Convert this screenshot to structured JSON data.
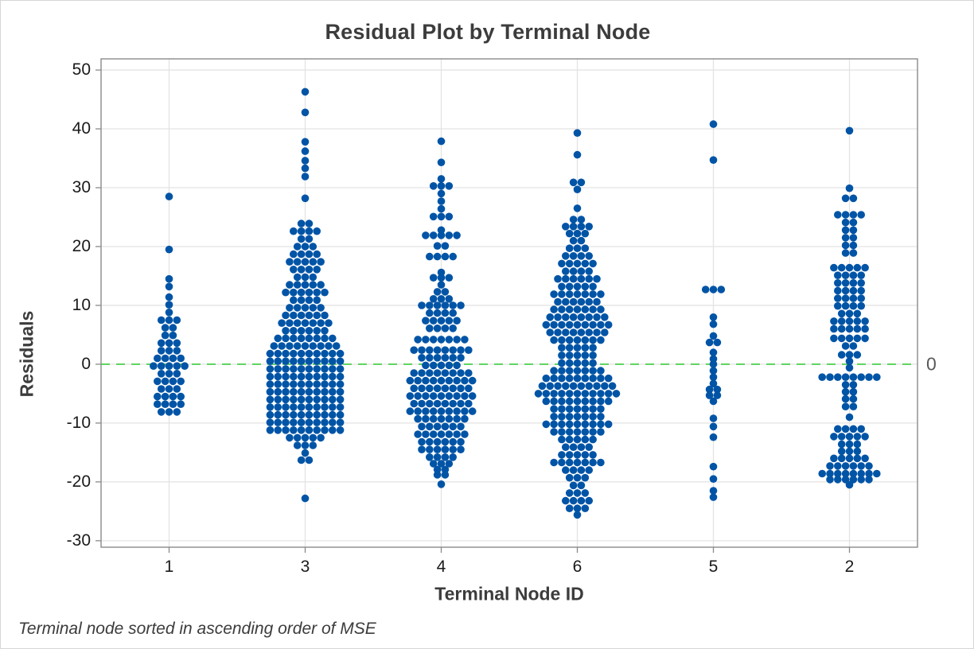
{
  "footnote": "Terminal node sorted in ascending order of MSE",
  "colors": {
    "dot": "#0054a6",
    "reference_line": "#3ecc3e",
    "frame": "#8a8a8a",
    "gridline": "#e3e3e3",
    "title_text": "#3c3c3c",
    "tick_text": "#1a1a1a",
    "reference_label_text": "#595959"
  },
  "chart_data": {
    "type": "scatter",
    "subtype": "beeswarm-dotplot",
    "title": "Residual Plot by Terminal Node",
    "xlabel": "Terminal Node ID",
    "ylabel": "Residuals",
    "footnote": "Terminal node sorted in ascending order of MSE",
    "grid": true,
    "ylim": [
      -31.1,
      51.9
    ],
    "yticks": [
      50,
      40,
      30,
      20,
      10,
      0,
      -10,
      -20,
      -30
    ],
    "categories": [
      "1",
      "3",
      "4",
      "6",
      "5",
      "2"
    ],
    "reference_line": {
      "value": 0,
      "label": "0",
      "style": "dashed",
      "color": "#3ecc3e"
    },
    "dot_color": "#0054a6",
    "note": "bins are [residual_value, dot_count] pairs per terminal node, estimated from plot",
    "series": [
      {
        "name": "1",
        "bins": [
          [
            28.5,
            1
          ],
          [
            19.5,
            1
          ],
          [
            14.5,
            1
          ],
          [
            13.2,
            1
          ],
          [
            11.4,
            1
          ],
          [
            10.1,
            1
          ],
          [
            8.8,
            1
          ],
          [
            7.5,
            3
          ],
          [
            6.2,
            2
          ],
          [
            4.9,
            2
          ],
          [
            3.6,
            3
          ],
          [
            2.3,
            3
          ],
          [
            1.0,
            4
          ],
          [
            -0.3,
            5
          ],
          [
            -1.6,
            3
          ],
          [
            -2.9,
            4
          ],
          [
            -4.2,
            3
          ],
          [
            -5.5,
            4
          ],
          [
            -6.8,
            4
          ],
          [
            -8.1,
            3
          ]
        ]
      },
      {
        "name": "3",
        "bins": [
          [
            46.3,
            1
          ],
          [
            42.8,
            1
          ],
          [
            37.8,
            1
          ],
          [
            36.2,
            1
          ],
          [
            34.6,
            1
          ],
          [
            33.3,
            1
          ],
          [
            31.9,
            1
          ],
          [
            28.2,
            1
          ],
          [
            23.9,
            2
          ],
          [
            22.6,
            4
          ],
          [
            21.3,
            2
          ],
          [
            20.0,
            3
          ],
          [
            18.7,
            4
          ],
          [
            17.4,
            5
          ],
          [
            16.1,
            4
          ],
          [
            14.8,
            3
          ],
          [
            13.5,
            5
          ],
          [
            12.2,
            6
          ],
          [
            10.9,
            4
          ],
          [
            9.6,
            5
          ],
          [
            8.3,
            6
          ],
          [
            7.0,
            7
          ],
          [
            5.7,
            6
          ],
          [
            4.4,
            8
          ],
          [
            3.1,
            9
          ],
          [
            1.8,
            10
          ],
          [
            0.5,
            10
          ],
          [
            -0.8,
            10
          ],
          [
            -2.1,
            10
          ],
          [
            -3.4,
            10
          ],
          [
            -4.7,
            10
          ],
          [
            -6.0,
            10
          ],
          [
            -7.3,
            10
          ],
          [
            -8.6,
            10
          ],
          [
            -9.9,
            10
          ],
          [
            -11.2,
            10
          ],
          [
            -12.5,
            5
          ],
          [
            -13.8,
            3
          ],
          [
            -15.1,
            1
          ],
          [
            -16.3,
            2
          ],
          [
            -22.8,
            1
          ]
        ]
      },
      {
        "name": "4",
        "bins": [
          [
            37.9,
            1
          ],
          [
            34.3,
            1
          ],
          [
            31.5,
            1
          ],
          [
            30.3,
            3
          ],
          [
            29.0,
            1
          ],
          [
            27.7,
            1
          ],
          [
            26.4,
            1
          ],
          [
            25.1,
            3
          ],
          [
            22.8,
            1
          ],
          [
            21.9,
            5
          ],
          [
            20.1,
            2
          ],
          [
            18.3,
            4
          ],
          [
            15.6,
            1
          ],
          [
            14.7,
            3
          ],
          [
            13.5,
            1
          ],
          [
            12.3,
            2
          ],
          [
            11.1,
            3
          ],
          [
            10.0,
            6
          ],
          [
            8.7,
            4
          ],
          [
            7.4,
            5
          ],
          [
            6.1,
            4
          ],
          [
            4.2,
            7
          ],
          [
            2.4,
            8
          ],
          [
            1.1,
            6
          ],
          [
            -0.2,
            5
          ],
          [
            -1.5,
            8
          ],
          [
            -2.8,
            9
          ],
          [
            -4.1,
            8
          ],
          [
            -5.4,
            9
          ],
          [
            -6.7,
            8
          ],
          [
            -8.0,
            9
          ],
          [
            -9.3,
            7
          ],
          [
            -10.6,
            6
          ],
          [
            -11.9,
            7
          ],
          [
            -13.2,
            6
          ],
          [
            -14.5,
            6
          ],
          [
            -15.8,
            4
          ],
          [
            -16.9,
            3
          ],
          [
            -17.9,
            2
          ],
          [
            -18.8,
            2
          ],
          [
            -20.4,
            1
          ]
        ]
      },
      {
        "name": "6",
        "bins": [
          [
            39.3,
            1
          ],
          [
            35.6,
            1
          ],
          [
            30.9,
            2
          ],
          [
            29.7,
            1
          ],
          [
            26.5,
            1
          ],
          [
            24.6,
            2
          ],
          [
            23.4,
            4
          ],
          [
            22.2,
            3
          ],
          [
            21.0,
            2
          ],
          [
            19.7,
            3
          ],
          [
            18.4,
            4
          ],
          [
            17.1,
            5
          ],
          [
            15.8,
            4
          ],
          [
            14.5,
            6
          ],
          [
            13.2,
            5
          ],
          [
            11.9,
            7
          ],
          [
            10.6,
            6
          ],
          [
            9.3,
            7
          ],
          [
            8.0,
            8
          ],
          [
            6.7,
            9
          ],
          [
            5.4,
            8
          ],
          [
            4.1,
            7
          ],
          [
            2.8,
            5
          ],
          [
            1.5,
            5
          ],
          [
            0.2,
            5
          ],
          [
            -1.1,
            7
          ],
          [
            -2.4,
            9
          ],
          [
            -3.7,
            10
          ],
          [
            -5.0,
            11
          ],
          [
            -6.3,
            9
          ],
          [
            -7.6,
            7
          ],
          [
            -8.9,
            7
          ],
          [
            -10.2,
            9
          ],
          [
            -11.5,
            7
          ],
          [
            -12.8,
            5
          ],
          [
            -14.1,
            4
          ],
          [
            -15.4,
            5
          ],
          [
            -16.7,
            7
          ],
          [
            -18.0,
            4
          ],
          [
            -19.3,
            3
          ],
          [
            -20.6,
            2
          ],
          [
            -21.9,
            3
          ],
          [
            -23.2,
            4
          ],
          [
            -24.5,
            3
          ],
          [
            -25.6,
            1
          ]
        ]
      },
      {
        "name": "5",
        "bins": [
          [
            40.8,
            1
          ],
          [
            34.7,
            1
          ],
          [
            12.7,
            3
          ],
          [
            8.0,
            1
          ],
          [
            6.8,
            1
          ],
          [
            4.8,
            1
          ],
          [
            3.7,
            2
          ],
          [
            2.0,
            1
          ],
          [
            0.9,
            1
          ],
          [
            0.0,
            1
          ],
          [
            -1.1,
            1
          ],
          [
            -2.2,
            1
          ],
          [
            -3.3,
            1
          ],
          [
            -4.3,
            2
          ],
          [
            -5.3,
            2
          ],
          [
            -6.3,
            1
          ],
          [
            -9.2,
            1
          ],
          [
            -10.6,
            1
          ],
          [
            -12.4,
            1
          ],
          [
            -17.4,
            1
          ],
          [
            -19.5,
            1
          ],
          [
            -21.5,
            1
          ],
          [
            -22.6,
            1
          ]
        ]
      },
      {
        "name": "2",
        "bins": [
          [
            39.7,
            1
          ],
          [
            29.9,
            1
          ],
          [
            28.2,
            2
          ],
          [
            25.4,
            4
          ],
          [
            24.1,
            2
          ],
          [
            22.8,
            2
          ],
          [
            21.5,
            2
          ],
          [
            20.2,
            2
          ],
          [
            18.9,
            2
          ],
          [
            16.4,
            5
          ],
          [
            15.1,
            4
          ],
          [
            13.8,
            4
          ],
          [
            12.5,
            4
          ],
          [
            11.2,
            4
          ],
          [
            9.9,
            4
          ],
          [
            8.6,
            3
          ],
          [
            7.3,
            5
          ],
          [
            6.0,
            5
          ],
          [
            4.4,
            5
          ],
          [
            3.1,
            2
          ],
          [
            1.6,
            3
          ],
          [
            0.5,
            1
          ],
          [
            -0.6,
            1
          ],
          [
            -2.2,
            8
          ],
          [
            -3.5,
            2
          ],
          [
            -4.7,
            2
          ],
          [
            -5.9,
            2
          ],
          [
            -7.2,
            2
          ],
          [
            -9.0,
            1
          ],
          [
            -11.0,
            4
          ],
          [
            -12.3,
            5
          ],
          [
            -13.6,
            3
          ],
          [
            -14.8,
            3
          ],
          [
            -16.0,
            5
          ],
          [
            -17.3,
            6
          ],
          [
            -18.6,
            8
          ],
          [
            -19.6,
            6
          ],
          [
            -20.5,
            1
          ]
        ]
      }
    ]
  }
}
